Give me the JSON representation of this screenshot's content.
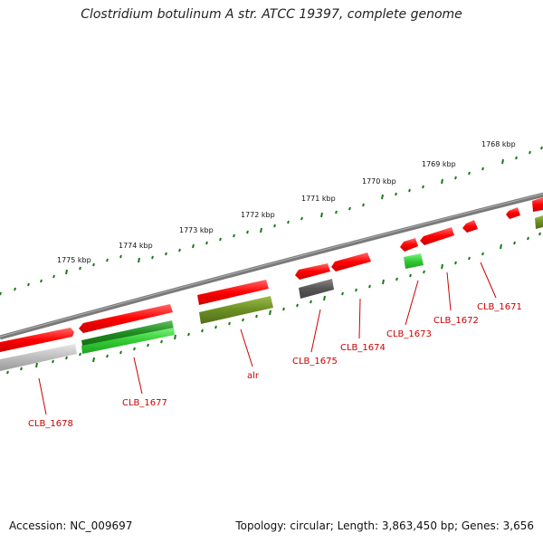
{
  "header": {
    "title": "Clostridium botulinum A str. ATCC 19397, complete genome"
  },
  "footer": {
    "accession": "Accession: NC_009697",
    "summary": "Topology: circular; Length: 3,863,450 bp; Genes: 3,656"
  },
  "map": {
    "kbp_labels": [
      "1775 kbp",
      "1774 kbp",
      "1773 kbp",
      "1772 kbp",
      "1771 kbp",
      "1770 kbp",
      "1769 kbp",
      "1768 kbp"
    ],
    "genes": [
      {
        "name": "CLB_1678",
        "color": "#ff0000"
      },
      {
        "name": "CLB_1677",
        "color": "#ff0000"
      },
      {
        "name": "alr",
        "color": "#ff0000"
      },
      {
        "name": "CLB_1675",
        "color": "#ff0000"
      },
      {
        "name": "CLB_1674",
        "color": "#ff0000"
      },
      {
        "name": "CLB_1673",
        "color": "#ff0000"
      },
      {
        "name": "CLB_1672",
        "color": "#ff0000"
      },
      {
        "name": "CLB_1671",
        "color": "#ff0000"
      }
    ],
    "colors": {
      "gene_red": "#ff0000",
      "gene_dark_green": "#2a8a2a",
      "gene_light_green": "#33cc33",
      "gene_olive": "#6b8e23",
      "gene_gray": "#555555",
      "gene_light_gray": "#bbbbbb",
      "backbone": "#777777",
      "ticks": "#1a7a1a",
      "label": "#cc0000"
    }
  }
}
